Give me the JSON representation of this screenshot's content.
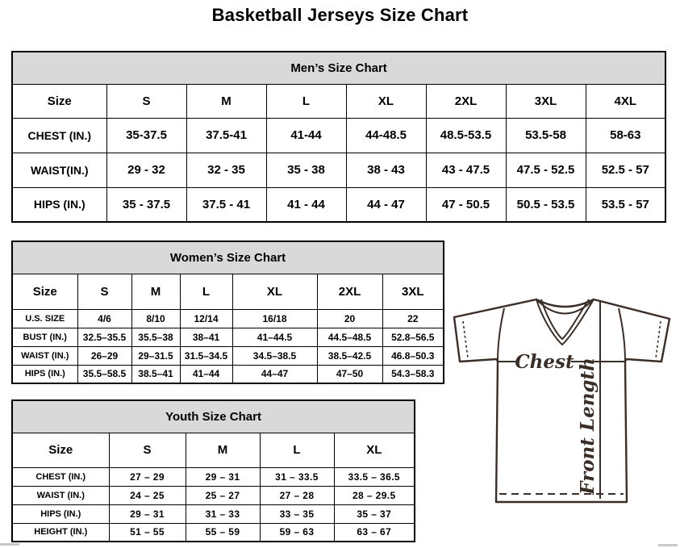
{
  "page_title": "Basketball Jerseys Size Chart",
  "colors": {
    "header_band_bg": "#d9d9d9",
    "border": "#000000",
    "text": "#000000",
    "jersey_outline": "#3a2e28"
  },
  "mens_chart": {
    "title": "Men’s Size Chart",
    "columns": [
      "Size",
      "S",
      "M",
      "L",
      "XL",
      "2XL",
      "3XL",
      "4XL"
    ],
    "rows": [
      {
        "label": "CHEST (IN.)",
        "values": [
          "35-37.5",
          "37.5-41",
          "41-44",
          "44-48.5",
          "48.5-53.5",
          "53.5-58",
          "58-63"
        ]
      },
      {
        "label": "WAIST(IN.)",
        "values": [
          "29 - 32",
          "32 - 35",
          "35 - 38",
          "38 - 43",
          "43 - 47.5",
          "47.5 - 52.5",
          "52.5 - 57"
        ]
      },
      {
        "label": "HIPS (IN.)",
        "values": [
          "35 - 37.5",
          "37.5 - 41",
          "41 - 44",
          "44 - 47",
          "47 - 50.5",
          "50.5 - 53.5",
          "53.5 - 57"
        ]
      }
    ]
  },
  "womens_chart": {
    "title": "Women’s Size Chart",
    "columns": [
      "Size",
      "S",
      "M",
      "L",
      "XL",
      "2XL",
      "3XL"
    ],
    "rows": [
      {
        "label": "U.S. SIZE",
        "values": [
          "4/6",
          "8/10",
          "12/14",
          "16/18",
          "20",
          "22"
        ]
      },
      {
        "label": "BUST (IN.)",
        "values": [
          "32.5–35.5",
          "35.5–38",
          "38–41",
          "41–44.5",
          "44.5–48.5",
          "52.8–56.5"
        ]
      },
      {
        "label": "WAIST (IN.)",
        "values": [
          "26–29",
          "29–31.5",
          "31.5–34.5",
          "34.5–38.5",
          "38.5–42.5",
          "46.8–50.3"
        ]
      },
      {
        "label": "HIPS (IN.)",
        "values": [
          "35.5–58.5",
          "38.5–41",
          "41–44",
          "44–47",
          "47–50",
          "54.3–58.3"
        ]
      }
    ]
  },
  "youth_chart": {
    "title": "Youth Size Chart",
    "columns": [
      "Size",
      "S",
      "M",
      "L",
      "XL"
    ],
    "rows": [
      {
        "label": "CHEST (IN.)",
        "values": [
          "27 – 29",
          "29 – 31",
          "31 – 33.5",
          "33.5 – 36.5"
        ]
      },
      {
        "label": "WAIST (IN.)",
        "values": [
          "24 – 25",
          "25 – 27",
          "27 – 28",
          "28 – 29.5"
        ]
      },
      {
        "label": "HIPS (IN.)",
        "values": [
          "29 – 31",
          "31 – 33",
          "33 – 35",
          "35 – 37"
        ]
      },
      {
        "label": "HEIGHT (IN.)",
        "values": [
          "51 – 55",
          "55 – 59",
          "59 – 63",
          "63 – 67"
        ]
      }
    ]
  },
  "diagram": {
    "chest_label": "Chest",
    "front_length_label": "Front Length"
  }
}
